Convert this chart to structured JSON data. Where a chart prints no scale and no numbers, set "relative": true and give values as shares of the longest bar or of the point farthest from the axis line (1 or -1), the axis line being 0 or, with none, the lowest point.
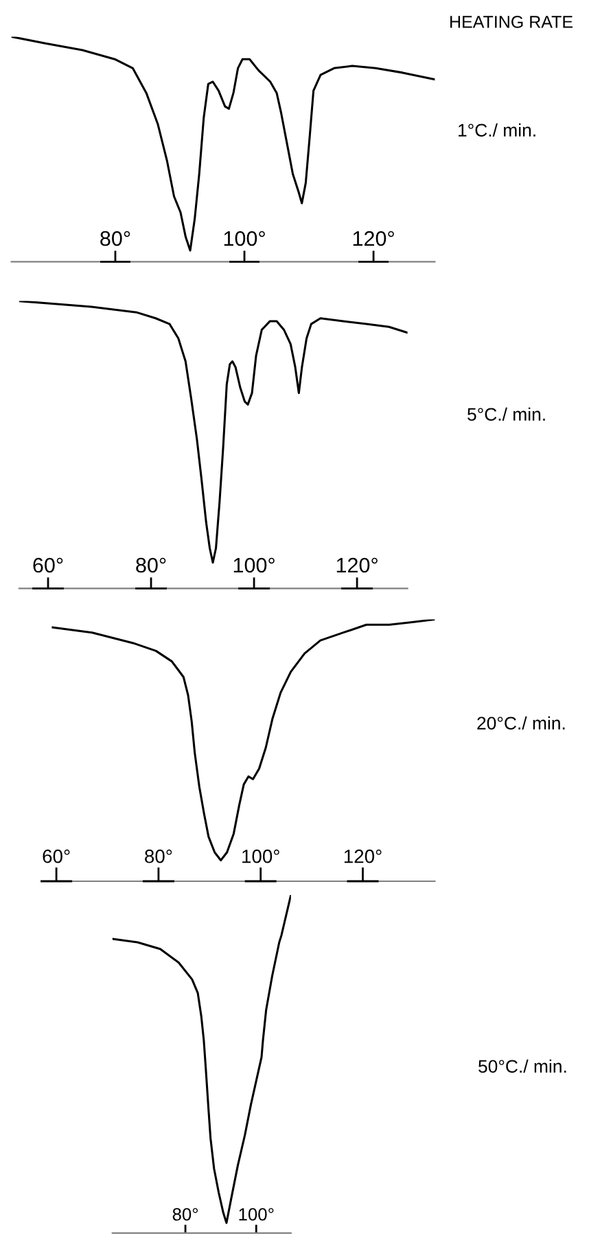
{
  "chart_data": [
    {
      "type": "line",
      "relative": true,
      "xlim": [
        63.9,
        129.5
      ],
      "xticks": [
        {
          "value": 80,
          "label": "80°"
        },
        {
          "value": 100,
          "label": "100°"
        },
        {
          "value": 120,
          "label": "120°"
        }
      ],
      "annotations": [
        "HEATING RATE"
      ],
      "series": [
        {
          "name": "1°C./ min.",
          "color": "#000000",
          "x": [
            63.9,
            69.2,
            74.9,
            79.9,
            82.7,
            84.8,
            86.6,
            88.0,
            89.1,
            90.1,
            90.9,
            91.6,
            92.3,
            93.0,
            93.7,
            94.4,
            95.1,
            96.0,
            97.0,
            97.6,
            98.3,
            99.0,
            99.7,
            100.8,
            102.2,
            104.0,
            105.0,
            105.7,
            106.7,
            107.5,
            108.4,
            108.9,
            109.5,
            110.1,
            110.7,
            111.8,
            113.9,
            116.7,
            120.3,
            124.5,
            129.5
          ],
          "values": [
            1.0,
            0.97,
            0.94,
            0.9,
            0.86,
            0.75,
            0.61,
            0.45,
            0.29,
            0.22,
            0.11,
            0.05,
            0.19,
            0.39,
            0.64,
            0.79,
            0.8,
            0.76,
            0.69,
            0.68,
            0.75,
            0.86,
            0.9,
            0.9,
            0.85,
            0.8,
            0.75,
            0.66,
            0.51,
            0.39,
            0.31,
            0.26,
            0.35,
            0.55,
            0.76,
            0.83,
            0.86,
            0.87,
            0.86,
            0.84,
            0.81
          ]
        }
      ]
    },
    {
      "type": "line",
      "relative": true,
      "xlim": [
        54.4,
        129.8
      ],
      "xticks": [
        {
          "value": 60,
          "label": "60°"
        },
        {
          "value": 80,
          "label": "80°"
        },
        {
          "value": 100,
          "label": "100°"
        },
        {
          "value": 120,
          "label": "120°"
        }
      ],
      "series": [
        {
          "name": "5°C./ min.",
          "color": "#000000",
          "x": [
            54.4,
            61.3,
            68.4,
            77.3,
            80.9,
            83.6,
            85.3,
            86.7,
            87.8,
            88.9,
            89.8,
            90.7,
            91.4,
            92.0,
            92.6,
            93.3,
            94.0,
            94.7,
            95.3,
            95.8,
            96.4,
            97.3,
            98.2,
            98.8,
            99.6,
            100.4,
            101.5,
            103.1,
            104.4,
            105.8,
            107.1,
            108.0,
            108.7,
            109.3,
            110.2,
            111.1,
            112.9,
            117.3,
            121.8,
            126.2,
            129.8
          ],
          "values": [
            1.0,
            0.99,
            0.98,
            0.96,
            0.94,
            0.92,
            0.87,
            0.79,
            0.66,
            0.52,
            0.38,
            0.23,
            0.14,
            0.09,
            0.14,
            0.3,
            0.49,
            0.71,
            0.78,
            0.79,
            0.77,
            0.7,
            0.65,
            0.64,
            0.68,
            0.81,
            0.9,
            0.93,
            0.93,
            0.9,
            0.85,
            0.77,
            0.68,
            0.77,
            0.87,
            0.92,
            0.94,
            0.93,
            0.92,
            0.91,
            0.89
          ]
        }
      ]
    },
    {
      "type": "line",
      "relative": true,
      "xlim": [
        59.1,
        134.1
      ],
      "xticks": [
        {
          "value": 60,
          "label": "60°"
        },
        {
          "value": 80,
          "label": "80°"
        },
        {
          "value": 100,
          "label": "100°"
        },
        {
          "value": 120,
          "label": "120°"
        }
      ],
      "series": [
        {
          "name": "20°C./ min.",
          "color": "#000000",
          "x": [
            59.1,
            67.0,
            75.0,
            79.5,
            82.6,
            84.9,
            85.8,
            86.5,
            87.1,
            88.0,
            88.9,
            89.8,
            91.0,
            92.2,
            93.4,
            94.7,
            95.8,
            96.7,
            97.6,
            98.5,
            99.7,
            101.0,
            102.3,
            103.9,
            105.9,
            108.6,
            111.7,
            116.2,
            120.7,
            125.2,
            129.7,
            134.1
          ],
          "values": [
            0.97,
            0.95,
            0.91,
            0.88,
            0.84,
            0.78,
            0.71,
            0.61,
            0.49,
            0.36,
            0.26,
            0.17,
            0.11,
            0.08,
            0.11,
            0.18,
            0.29,
            0.37,
            0.4,
            0.39,
            0.43,
            0.51,
            0.62,
            0.72,
            0.8,
            0.87,
            0.92,
            0.95,
            0.98,
            0.98,
            0.99,
            1.0
          ]
        }
      ]
    },
    {
      "type": "line",
      "relative": true,
      "xlim": [
        59.4,
        109.8
      ],
      "xticks": [
        {
          "value": 80,
          "label": "80°"
        },
        {
          "value": 100,
          "label": "100°"
        }
      ],
      "series": [
        {
          "name": "50°C./ min.",
          "color": "#000000",
          "x": [
            59.4,
            66.5,
            72.9,
            78.1,
            81.9,
            83.5,
            84.5,
            85.2,
            85.8,
            86.5,
            87.1,
            88.1,
            89.4,
            90.7,
            91.6,
            92.9,
            94.8,
            96.8,
            98.5,
            100.0,
            101.5,
            101.9,
            102.8,
            104.5,
            106.5,
            107.1,
            109.8
          ],
          "values": [
            0.87,
            0.86,
            0.84,
            0.8,
            0.75,
            0.71,
            0.64,
            0.57,
            0.48,
            0.37,
            0.28,
            0.19,
            0.12,
            0.06,
            0.03,
            0.1,
            0.2,
            0.29,
            0.38,
            0.45,
            0.52,
            0.57,
            0.66,
            0.76,
            0.86,
            0.88,
            1.0
          ]
        }
      ]
    }
  ]
}
